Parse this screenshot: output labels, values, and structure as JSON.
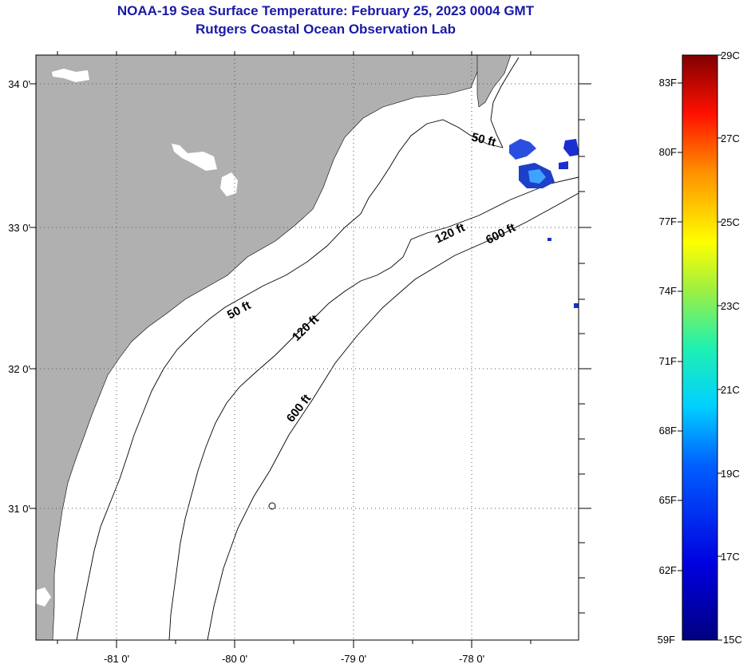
{
  "header": {
    "title": "NOAA-19 Sea Surface Temperature:  February 25, 2023 0004 GMT",
    "subtitle": "Rutgers Coastal Ocean Observation Lab"
  },
  "map": {
    "lat_labels": [
      "34 0'",
      "33 0'",
      "32 0'",
      "31 0'"
    ],
    "lon_labels": [
      "-81 0'",
      "-80 0'",
      "-79 0'",
      "-78 0'"
    ],
    "contour_labels": [
      "50 ft",
      "50 ft",
      "120 ft",
      "120 ft",
      "600 ft",
      "600 ft"
    ],
    "colors": {
      "land": "#b0b0b0",
      "ocean": "#ffffff",
      "contour": "#000000",
      "grid": "#555555"
    }
  },
  "colorbar": {
    "f_labels": [
      "83F",
      "80F",
      "77F",
      "74F",
      "71F",
      "68F",
      "65F",
      "62F",
      "59F"
    ],
    "c_labels": [
      "29C",
      "27C",
      "25C",
      "23C",
      "21C",
      "19C",
      "17C",
      "15C"
    ],
    "range_c": [
      15,
      29
    ]
  }
}
